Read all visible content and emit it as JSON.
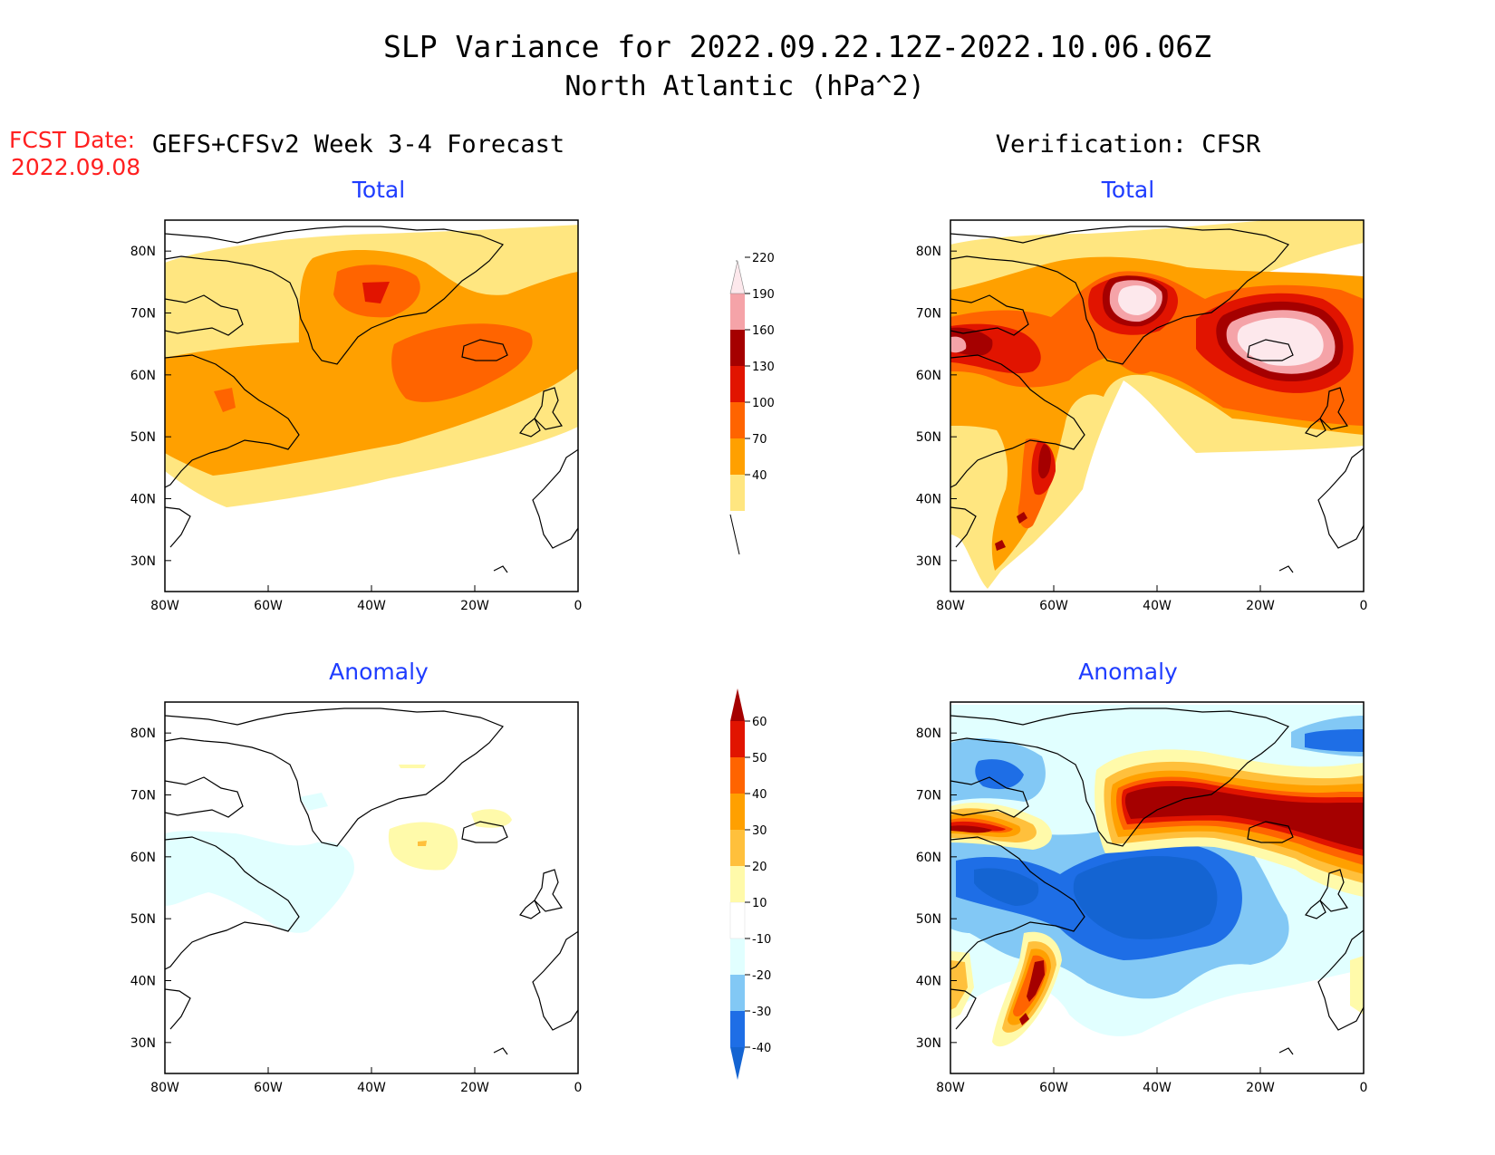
{
  "title": {
    "line1": "SLP Variance for 2022.09.22.12Z-2022.10.06.06Z",
    "line2": "North Atlantic (hPa^2)"
  },
  "fcst": {
    "label": "FCST Date:",
    "date": "2022.09.08"
  },
  "headers": {
    "forecast": "GEFS+CFSv2 Week 3-4 Forecast",
    "verification": "Verification: CFSR"
  },
  "panels": {
    "fc_total": "Total",
    "vf_total": "Total",
    "fc_anom": "Anomaly",
    "vf_anom": "Anomaly"
  },
  "axes": {
    "lon_labels": [
      "80W",
      "60W",
      "40W",
      "20W",
      "0"
    ],
    "lat_labels": [
      "80N",
      "70N",
      "60N",
      "50N",
      "40N",
      "30N"
    ]
  },
  "colorbars": {
    "total": {
      "labels": [
        "40",
        "70",
        "100",
        "130",
        "160",
        "190",
        "220"
      ],
      "colors": [
        "#ffe680",
        "#ffa000",
        "#ff6400",
        "#e11400",
        "#a50000",
        "#f5a3a8",
        "#fde8ec"
      ]
    },
    "anomaly": {
      "labels": [
        "-40",
        "-30",
        "-20",
        "-10",
        "10",
        "20",
        "30",
        "40",
        "50",
        "60"
      ],
      "colors": [
        "#1464d2",
        "#1e6ee6",
        "#82c8f5",
        "#e1ffff",
        "#ffffff",
        "#fffaaa",
        "#ffc03c",
        "#ffa000",
        "#ff6400",
        "#e11400",
        "#a50000"
      ]
    }
  },
  "chart_data": [
    {
      "type": "heatmap",
      "title": "Total",
      "subtitle": "GEFS+CFSv2 Week 3-4 Forecast",
      "xlabel": "",
      "ylabel": "",
      "xlim": [
        -80,
        0
      ],
      "ylim": [
        25,
        85
      ],
      "levels": [
        40,
        70,
        100,
        130,
        160,
        190,
        220
      ],
      "features": [
        {
          "level": 40,
          "lon": -42,
          "lat": 60
        },
        {
          "level": 70,
          "lon": -40,
          "lat": 62
        },
        {
          "level": 100,
          "lon": -38,
          "lat": 73
        },
        {
          "level": 100,
          "lon": -24,
          "lat": 62
        },
        {
          "level": 130,
          "lon": -38,
          "lat": 74
        }
      ]
    },
    {
      "type": "heatmap",
      "title": "Total",
      "subtitle": "Verification: CFSR",
      "xlabel": "",
      "ylabel": "",
      "xlim": [
        -80,
        0
      ],
      "ylim": [
        25,
        85
      ],
      "levels": [
        40,
        70,
        100,
        130,
        160,
        190,
        220
      ],
      "features": [
        {
          "level": 220,
          "lon": -10,
          "lat": 63
        },
        {
          "level": 220,
          "lon": -43,
          "lat": 71
        },
        {
          "level": 190,
          "lon": -78,
          "lat": 64
        },
        {
          "level": 160,
          "lon": -62,
          "lat": 45
        },
        {
          "level": 130,
          "lon": -64,
          "lat": 61
        }
      ]
    },
    {
      "type": "heatmap",
      "title": "Anomaly",
      "subtitle": "GEFS+CFSv2 Week 3-4 Forecast",
      "xlabel": "",
      "ylabel": "",
      "xlim": [
        -80,
        0
      ],
      "ylim": [
        25,
        85
      ],
      "levels": [
        -40,
        -30,
        -20,
        -10,
        10,
        20,
        30,
        40,
        50,
        60
      ],
      "features": [
        {
          "level": -10,
          "lon": -52,
          "lat": 55
        },
        {
          "level": 10,
          "lon": -28,
          "lat": 62
        },
        {
          "level": 20,
          "lon": -30,
          "lat": 62
        }
      ]
    },
    {
      "type": "heatmap",
      "title": "Anomaly",
      "subtitle": "Verification: CFSR",
      "xlabel": "",
      "ylabel": "",
      "xlim": [
        -80,
        0
      ],
      "ylim": [
        25,
        85
      ],
      "levels": [
        -40,
        -30,
        -20,
        -10,
        10,
        20,
        30,
        40,
        50,
        60
      ],
      "features": [
        {
          "level": 60,
          "lon": -15,
          "lat": 64
        },
        {
          "level": 60,
          "lon": -42,
          "lat": 70
        },
        {
          "level": 60,
          "lon": -61,
          "lat": 43
        },
        {
          "level": -40,
          "lon": -42,
          "lat": 54
        },
        {
          "level": -40,
          "lon": -70,
          "lat": 56
        },
        {
          "level": -40,
          "lon": -75,
          "lat": 74
        },
        {
          "level": -40,
          "lon": -4,
          "lat": 80
        }
      ]
    }
  ]
}
